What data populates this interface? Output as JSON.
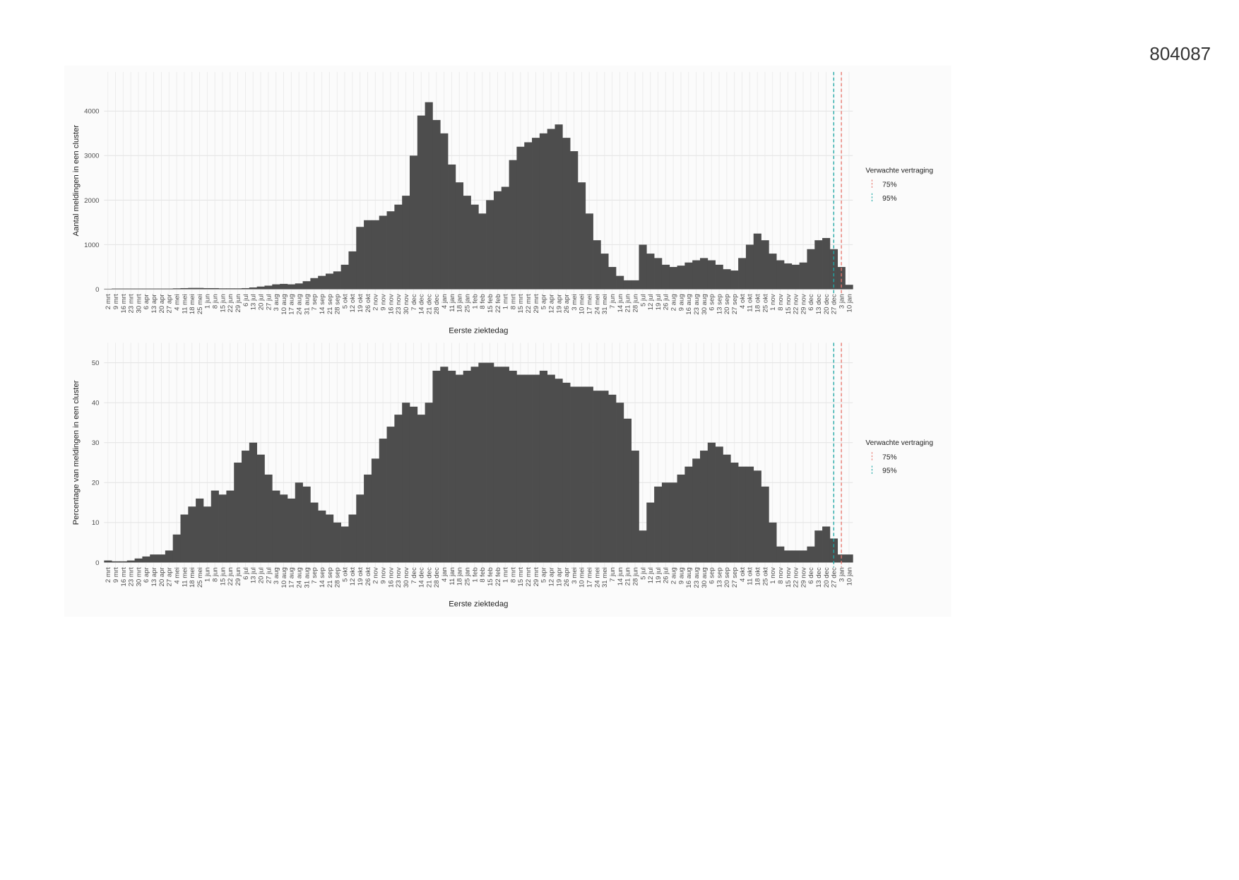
{
  "page_number": "804087",
  "chart_data": [
    {
      "type": "bar",
      "x_label": "Eerste ziektedag",
      "y_label": "Aantal meldingen in een cluster",
      "color": "#4d4d4d",
      "grid": true,
      "categories": [
        "2 mrt",
        "9 mrt",
        "16 mrt",
        "23 mrt",
        "30 mrt",
        "6 apr",
        "13 apr",
        "20 apr",
        "27 apr",
        "4 mei",
        "11 mei",
        "18 mei",
        "25 mei",
        "1 jun",
        "8 jun",
        "15 jun",
        "22 jun",
        "29 jun",
        "6 jul",
        "13 jul",
        "20 jul",
        "27 jul",
        "3 aug",
        "10 aug",
        "17 aug",
        "24 aug",
        "31 aug",
        "7 sep",
        "14 sep",
        "21 sep",
        "28 sep",
        "5 okt",
        "12 okt",
        "19 okt",
        "26 okt",
        "2 nov",
        "9 nov",
        "16 nov",
        "23 nov",
        "30 nov",
        "7 dec",
        "14 dec",
        "21 dec",
        "28 dec",
        "4 jan",
        "11 jan",
        "18 jan",
        "25 jan",
        "1 feb",
        "8 feb",
        "15 feb",
        "22 feb",
        "1 mrt",
        "8 mrt",
        "15 mrt",
        "22 mrt",
        "29 mrt",
        "5 apr",
        "12 apr",
        "19 apr",
        "26 apr",
        "3 mei",
        "10 mei",
        "17 mei",
        "24 mei",
        "31 mei",
        "7 jun",
        "14 jun",
        "21 jun",
        "28 jun",
        "5 jul",
        "12 jul",
        "19 jul",
        "26 jul",
        "2 aug",
        "9 aug",
        "16 aug",
        "23 aug",
        "30 aug",
        "6 sep",
        "13 sep",
        "20 sep",
        "27 sep",
        "4 okt",
        "11 okt",
        "18 okt",
        "25 okt",
        "1 nov",
        "8 nov",
        "15 nov",
        "22 nov",
        "29 nov",
        "6 dec",
        "13 dec",
        "20 dec",
        "27 dec",
        "3 jan",
        "10 jan"
      ],
      "values": [
        10,
        15,
        15,
        15,
        15,
        15,
        15,
        15,
        15,
        20,
        25,
        30,
        30,
        25,
        25,
        20,
        20,
        20,
        25,
        40,
        60,
        80,
        110,
        120,
        110,
        130,
        180,
        250,
        300,
        350,
        400,
        550,
        850,
        1400,
        1550,
        1550,
        1650,
        1750,
        1900,
        2100,
        3000,
        3900,
        4200,
        3800,
        3500,
        2800,
        2400,
        2100,
        1900,
        1700,
        2000,
        2200,
        2300,
        2900,
        3200,
        3300,
        3400,
        3500,
        3600,
        3700,
        3400,
        3100,
        2400,
        1700,
        1100,
        800,
        500,
        300,
        200,
        200,
        1000,
        800,
        700,
        550,
        500,
        530,
        600,
        650,
        700,
        650,
        550,
        450,
        420,
        700,
        1000,
        1250,
        1100,
        800,
        650,
        580,
        550,
        600,
        900,
        1100,
        1150,
        900,
        500,
        100
      ],
      "ylim": [
        0,
        4880
      ],
      "yticks": [
        0,
        1000,
        2000,
        3000,
        4000
      ],
      "legend_title": "Verwachte vertraging",
      "reference_lines": [
        {
          "name": "75%",
          "color": "#e8766d",
          "category": "3 jan"
        },
        {
          "name": "95%",
          "color": "#1fa8a6",
          "category": "27 dec"
        }
      ]
    },
    {
      "type": "bar",
      "x_label": "Eerste ziektedag",
      "y_label": "Percentage van meldingen in een cluster",
      "color": "#4d4d4d",
      "grid": true,
      "categories": [
        "2 mrt",
        "9 mrt",
        "16 mrt",
        "23 mrt",
        "30 mrt",
        "6 apr",
        "13 apr",
        "20 apr",
        "27 apr",
        "4 mei",
        "11 mei",
        "18 mei",
        "25 mei",
        "1 jun",
        "8 jun",
        "15 jun",
        "22 jun",
        "29 jun",
        "6 jul",
        "13 jul",
        "20 jul",
        "27 jul",
        "3 aug",
        "10 aug",
        "17 aug",
        "24 aug",
        "31 aug",
        "7 sep",
        "14 sep",
        "21 sep",
        "28 sep",
        "5 okt",
        "12 okt",
        "19 okt",
        "26 okt",
        "2 nov",
        "9 nov",
        "16 nov",
        "23 nov",
        "30 nov",
        "7 dec",
        "14 dec",
        "21 dec",
        "28 dec",
        "4 jan",
        "11 jan",
        "18 jan",
        "25 jan",
        "1 feb",
        "8 feb",
        "15 feb",
        "22 feb",
        "1 mrt",
        "8 mrt",
        "15 mrt",
        "22 mrt",
        "29 mrt",
        "5 apr",
        "12 apr",
        "19 apr",
        "26 apr",
        "3 mei",
        "10 mei",
        "17 mei",
        "24 mei",
        "31 mei",
        "7 jun",
        "14 jun",
        "21 jun",
        "28 jun",
        "5 jul",
        "12 jul",
        "19 jul",
        "26 jul",
        "2 aug",
        "9 aug",
        "16 aug",
        "23 aug",
        "30 aug",
        "6 sep",
        "13 sep",
        "20 sep",
        "27 sep",
        "4 okt",
        "11 okt",
        "18 okt",
        "25 okt",
        "1 nov",
        "8 nov",
        "15 nov",
        "22 nov",
        "29 nov",
        "6 dec",
        "13 dec",
        "20 dec",
        "27 dec",
        "3 jan",
        "10 jan"
      ],
      "values": [
        0.5,
        0.3,
        0.3,
        0.5,
        1,
        1.5,
        2,
        2,
        3,
        7,
        12,
        14,
        16,
        14,
        18,
        17,
        18,
        25,
        28,
        30,
        27,
        22,
        18,
        17,
        16,
        20,
        19,
        15,
        13,
        12,
        10,
        9,
        12,
        17,
        22,
        26,
        31,
        34,
        37,
        40,
        39,
        37,
        40,
        48,
        49,
        48,
        47,
        48,
        49,
        50,
        50,
        49,
        49,
        48,
        47,
        47,
        47,
        48,
        47,
        46,
        45,
        44,
        44,
        44,
        43,
        43,
        42,
        40,
        36,
        28,
        8,
        15,
        19,
        20,
        20,
        22,
        24,
        26,
        28,
        30,
        29,
        27,
        25,
        24,
        24,
        23,
        19,
        10,
        4,
        3,
        3,
        3,
        4,
        8,
        9,
        6,
        2,
        2
      ],
      "ylim": [
        0,
        55
      ],
      "yticks": [
        0,
        10,
        20,
        30,
        40,
        50
      ],
      "legend_title": "Verwachte vertraging",
      "reference_lines": [
        {
          "name": "75%",
          "color": "#e8766d",
          "category": "3 jan"
        },
        {
          "name": "95%",
          "color": "#1fa8a6",
          "category": "27 dec"
        }
      ]
    }
  ]
}
